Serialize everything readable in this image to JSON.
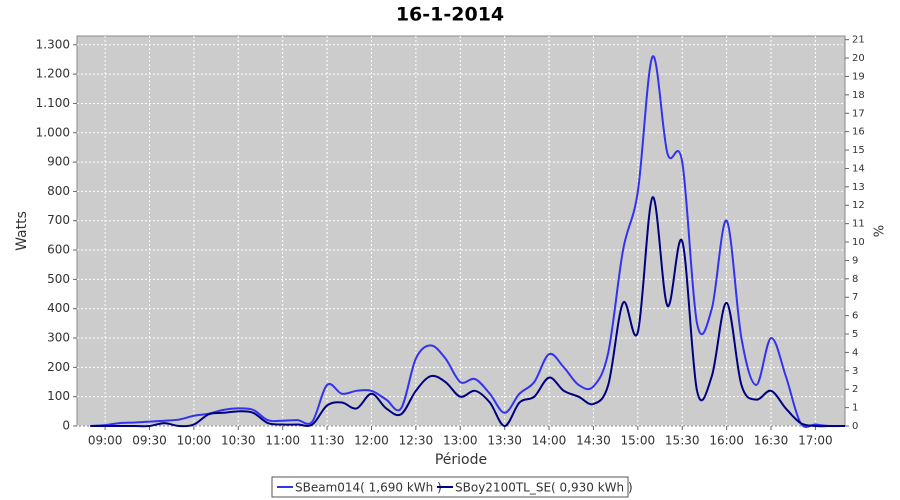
{
  "chart_data": {
    "type": "line",
    "title": "16-1-2014",
    "x_label": "Période",
    "y_label": "Watts",
    "y2_label": "%",
    "x": [
      "08:50",
      "09:00",
      "09:10",
      "09:20",
      "09:30",
      "09:40",
      "09:50",
      "10:00",
      "10:10",
      "10:20",
      "10:30",
      "10:40",
      "10:50",
      "11:00",
      "11:10",
      "11:20",
      "11:30",
      "11:40",
      "11:50",
      "12:00",
      "12:10",
      "12:20",
      "12:30",
      "12:40",
      "12:50",
      "13:00",
      "13:10",
      "13:20",
      "13:30",
      "13:40",
      "13:50",
      "14:00",
      "14:10",
      "14:20",
      "14:30",
      "14:40",
      "14:50",
      "15:00",
      "15:10",
      "15:20",
      "15:30",
      "15:40",
      "15:50",
      "16:00",
      "16:10",
      "16:20",
      "16:30",
      "16:40",
      "16:50",
      "17:00",
      "17:10",
      "17:20"
    ],
    "series": [
      {
        "name": "SBeam014( 1,690 kWh )",
        "color": "#3333ee",
        "values": [
          0,
          3,
          10,
          12,
          15,
          18,
          22,
          35,
          42,
          55,
          60,
          55,
          20,
          18,
          20,
          15,
          140,
          110,
          120,
          120,
          90,
          60,
          230,
          275,
          230,
          150,
          160,
          110,
          45,
          110,
          150,
          245,
          200,
          140,
          135,
          250,
          600,
          800,
          1260,
          930,
          900,
          350,
          400,
          700,
          300,
          140,
          300,
          170,
          10,
          5,
          0,
          0
        ]
      },
      {
        "name": "SBoy2100TL_SE( 0,930 kWh )",
        "color": "#000080",
        "values": [
          0,
          0,
          0,
          0,
          0,
          10,
          0,
          5,
          40,
          45,
          50,
          45,
          10,
          5,
          5,
          5,
          70,
          80,
          60,
          110,
          60,
          40,
          120,
          170,
          150,
          100,
          120,
          80,
          0,
          80,
          100,
          165,
          120,
          100,
          75,
          140,
          420,
          320,
          780,
          410,
          630,
          120,
          170,
          420,
          140,
          90,
          120,
          60,
          10,
          0,
          0,
          0
        ]
      }
    ],
    "xlim": [
      "08:41",
      "17:20"
    ],
    "xticks": [
      "09:00",
      "09:30",
      "10:00",
      "10:30",
      "11:00",
      "11:30",
      "12:00",
      "12:30",
      "13:00",
      "13:30",
      "14:00",
      "14:30",
      "15:00",
      "15:30",
      "16:00",
      "16:30",
      "17:00"
    ],
    "ylim": [
      0,
      1330
    ],
    "yticks": [
      0,
      100,
      200,
      300,
      400,
      500,
      600,
      700,
      800,
      900,
      {
        "value": 1000,
        "label": "1.000"
      },
      {
        "value": 1100,
        "label": "1.100"
      },
      {
        "value": 1200,
        "label": "1.200"
      },
      {
        "value": 1300,
        "label": "1.300"
      }
    ],
    "y2lim": [
      0,
      21.2
    ],
    "y2ticks": [
      0,
      1,
      2,
      3,
      4,
      5,
      6,
      7,
      8,
      9,
      10,
      11,
      12,
      13,
      14,
      15,
      16,
      17,
      18,
      19,
      20,
      21
    ],
    "grid": true,
    "legend": "bottom"
  }
}
